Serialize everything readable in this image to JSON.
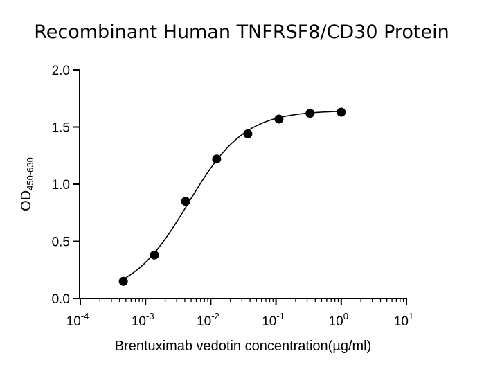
{
  "chart_data": {
    "type": "scatter",
    "title": "Recombinant Human TNFRSF8/CD30 Protein",
    "xlabel": "Brentuximab vedotin concentration(µg/ml)",
    "ylabel": {
      "main": "OD",
      "subscript": "450-630"
    },
    "x_scale": "log",
    "xlim": [
      0.0001,
      10
    ],
    "ylim": [
      0,
      2.0
    ],
    "x_ticks": [
      {
        "value": 0.0001,
        "base": "10",
        "exp": "-4"
      },
      {
        "value": 0.001,
        "base": "10",
        "exp": "-3"
      },
      {
        "value": 0.01,
        "base": "10",
        "exp": "-2"
      },
      {
        "value": 0.1,
        "base": "10",
        "exp": "-1"
      },
      {
        "value": 1,
        "base": "10",
        "exp": "0"
      },
      {
        "value": 10,
        "base": "10",
        "exp": "1"
      }
    ],
    "y_ticks": [
      {
        "value": 0.0,
        "label": "0.0"
      },
      {
        "value": 0.5,
        "label": "0.5"
      },
      {
        "value": 1.0,
        "label": "1.0"
      },
      {
        "value": 1.5,
        "label": "1.5"
      },
      {
        "value": 2.0,
        "label": "2.0"
      }
    ],
    "series": [
      {
        "x": [
          0.000457,
          0.00137,
          0.00412,
          0.0123,
          0.037,
          0.111,
          0.333,
          1.0
        ],
        "y": [
          0.15,
          0.38,
          0.85,
          1.22,
          1.44,
          1.57,
          1.62,
          1.63
        ],
        "marker": "circle",
        "color": "#000000",
        "fit": "four-parameter logistic curve"
      }
    ],
    "grid": false,
    "legend": "none"
  }
}
